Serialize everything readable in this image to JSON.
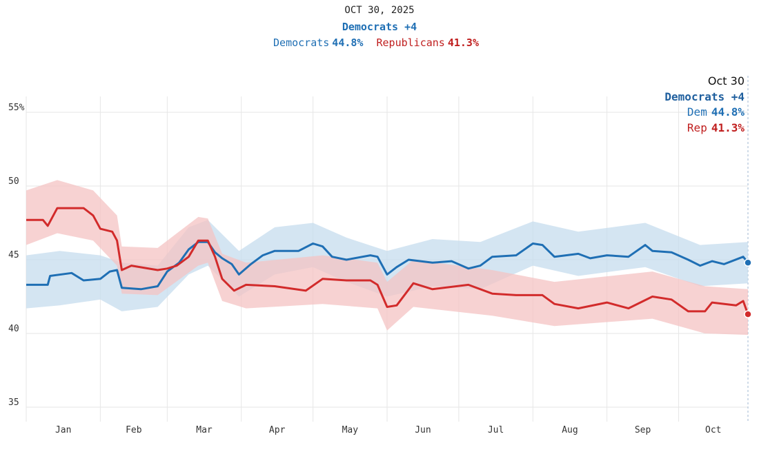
{
  "header": {
    "date": "OCT 30, 2025",
    "lead": "Democrats +4",
    "dem_name": "Democrats",
    "dem_value": "44.8%",
    "rep_name": "Republicans",
    "rep_value": "41.3%"
  },
  "tooltip": {
    "date": "Oct 30",
    "lead": "Democrats +4",
    "dem_name": "Dem",
    "dem_value": "44.8%",
    "rep_name": "Rep",
    "rep_value": "41.3%"
  },
  "colors": {
    "dem": "#1f6fb4",
    "dem_band": "#c5dcee",
    "rep": "#d22b2b",
    "rep_band": "#f4c3c3",
    "grid": "#e6e6e6"
  },
  "chart_data": {
    "type": "line",
    "title": "",
    "xlabel": "",
    "ylabel": "",
    "ylim": [
      34,
      56
    ],
    "yticks": [
      35,
      40,
      45,
      50,
      55
    ],
    "ytick_labels": [
      "35",
      "40",
      "45",
      "50",
      "55%"
    ],
    "months": [
      "Jan",
      "Feb",
      "Mar",
      "Apr",
      "May",
      "Jun",
      "Jul",
      "Aug",
      "Sep",
      "Oct"
    ],
    "x_range": [
      "2025-01-01",
      "2025-10-30"
    ],
    "grid": true,
    "series": [
      {
        "name": "Democrats",
        "points": [
          [
            "2025-01-01",
            43.3
          ],
          [
            "2025-01-10",
            43.3
          ],
          [
            "2025-01-11",
            43.9
          ],
          [
            "2025-01-20",
            44.1
          ],
          [
            "2025-01-25",
            43.6
          ],
          [
            "2025-02-01",
            43.7
          ],
          [
            "2025-02-05",
            44.2
          ],
          [
            "2025-02-08",
            44.3
          ],
          [
            "2025-02-10",
            43.1
          ],
          [
            "2025-02-18",
            43.0
          ],
          [
            "2025-02-25",
            43.2
          ],
          [
            "2025-03-01",
            44.2
          ],
          [
            "2025-03-06",
            44.8
          ],
          [
            "2025-03-10",
            45.7
          ],
          [
            "2025-03-14",
            46.2
          ],
          [
            "2025-03-18",
            46.2
          ],
          [
            "2025-03-21",
            45.5
          ],
          [
            "2025-03-24",
            45.1
          ],
          [
            "2025-03-28",
            44.7
          ],
          [
            "2025-03-31",
            44.0
          ],
          [
            "2025-04-05",
            44.7
          ],
          [
            "2025-04-10",
            45.3
          ],
          [
            "2025-04-15",
            45.6
          ],
          [
            "2025-04-25",
            45.6
          ],
          [
            "2025-05-01",
            46.1
          ],
          [
            "2025-05-05",
            45.9
          ],
          [
            "2025-05-09",
            45.2
          ],
          [
            "2025-05-15",
            45.0
          ],
          [
            "2025-05-25",
            45.3
          ],
          [
            "2025-05-28",
            45.2
          ],
          [
            "2025-06-01",
            44.0
          ],
          [
            "2025-06-05",
            44.5
          ],
          [
            "2025-06-10",
            45.0
          ],
          [
            "2025-06-20",
            44.8
          ],
          [
            "2025-06-28",
            44.9
          ],
          [
            "2025-07-05",
            44.4
          ],
          [
            "2025-07-10",
            44.6
          ],
          [
            "2025-07-15",
            45.2
          ],
          [
            "2025-07-25",
            45.3
          ],
          [
            "2025-08-01",
            46.1
          ],
          [
            "2025-08-05",
            46.0
          ],
          [
            "2025-08-10",
            45.2
          ],
          [
            "2025-08-20",
            45.4
          ],
          [
            "2025-08-25",
            45.1
          ],
          [
            "2025-09-01",
            45.3
          ],
          [
            "2025-09-10",
            45.2
          ],
          [
            "2025-09-17",
            46.0
          ],
          [
            "2025-09-20",
            45.6
          ],
          [
            "2025-09-28",
            45.5
          ],
          [
            "2025-10-05",
            45.0
          ],
          [
            "2025-10-10",
            44.6
          ],
          [
            "2025-10-15",
            44.9
          ],
          [
            "2025-10-20",
            44.7
          ],
          [
            "2025-10-28",
            45.2
          ],
          [
            "2025-10-30",
            44.8
          ]
        ],
        "band": [
          [
            "2025-01-01",
            41.7,
            45.3
          ],
          [
            "2025-01-15",
            41.9,
            45.6
          ],
          [
            "2025-02-01",
            42.3,
            45.3
          ],
          [
            "2025-02-10",
            41.5,
            44.8
          ],
          [
            "2025-02-25",
            41.8,
            44.6
          ],
          [
            "2025-03-10",
            44.0,
            47.2
          ],
          [
            "2025-03-18",
            44.6,
            47.7
          ],
          [
            "2025-03-31",
            42.5,
            45.6
          ],
          [
            "2025-04-15",
            44.0,
            47.2
          ],
          [
            "2025-05-01",
            44.5,
            47.5
          ],
          [
            "2025-05-15",
            43.5,
            46.5
          ],
          [
            "2025-06-01",
            42.5,
            45.6
          ],
          [
            "2025-06-20",
            43.2,
            46.4
          ],
          [
            "2025-07-10",
            43.0,
            46.2
          ],
          [
            "2025-08-01",
            44.6,
            47.6
          ],
          [
            "2025-08-20",
            43.9,
            46.9
          ],
          [
            "2025-09-17",
            44.5,
            47.5
          ],
          [
            "2025-10-10",
            43.2,
            46.0
          ],
          [
            "2025-10-30",
            43.4,
            46.2
          ]
        ]
      },
      {
        "name": "Republicans",
        "points": [
          [
            "2025-01-01",
            47.7
          ],
          [
            "2025-01-08",
            47.7
          ],
          [
            "2025-01-10",
            47.3
          ],
          [
            "2025-01-14",
            48.5
          ],
          [
            "2025-01-25",
            48.5
          ],
          [
            "2025-01-29",
            48.0
          ],
          [
            "2025-02-01",
            47.1
          ],
          [
            "2025-02-06",
            46.9
          ],
          [
            "2025-02-08",
            46.3
          ],
          [
            "2025-02-10",
            44.3
          ],
          [
            "2025-02-14",
            44.6
          ],
          [
            "2025-02-25",
            44.3
          ],
          [
            "2025-03-01",
            44.4
          ],
          [
            "2025-03-05",
            44.6
          ],
          [
            "2025-03-10",
            45.2
          ],
          [
            "2025-03-14",
            46.3
          ],
          [
            "2025-03-18",
            46.3
          ],
          [
            "2025-03-21",
            45.2
          ],
          [
            "2025-03-24",
            43.7
          ],
          [
            "2025-03-29",
            42.9
          ],
          [
            "2025-04-03",
            43.3
          ],
          [
            "2025-04-15",
            43.2
          ],
          [
            "2025-04-28",
            42.9
          ],
          [
            "2025-05-05",
            43.7
          ],
          [
            "2025-05-15",
            43.6
          ],
          [
            "2025-05-25",
            43.6
          ],
          [
            "2025-05-28",
            43.3
          ],
          [
            "2025-06-01",
            41.8
          ],
          [
            "2025-06-05",
            41.9
          ],
          [
            "2025-06-12",
            43.4
          ],
          [
            "2025-06-20",
            43.0
          ],
          [
            "2025-07-05",
            43.3
          ],
          [
            "2025-07-15",
            42.7
          ],
          [
            "2025-07-25",
            42.6
          ],
          [
            "2025-08-05",
            42.6
          ],
          [
            "2025-08-10",
            42.0
          ],
          [
            "2025-08-20",
            41.7
          ],
          [
            "2025-09-01",
            42.1
          ],
          [
            "2025-09-10",
            41.7
          ],
          [
            "2025-09-20",
            42.5
          ],
          [
            "2025-09-28",
            42.3
          ],
          [
            "2025-10-05",
            41.5
          ],
          [
            "2025-10-12",
            41.5
          ],
          [
            "2025-10-15",
            42.1
          ],
          [
            "2025-10-25",
            41.9
          ],
          [
            "2025-10-28",
            42.2
          ],
          [
            "2025-10-30",
            41.3
          ]
        ],
        "band": [
          [
            "2025-01-01",
            46.0,
            49.7
          ],
          [
            "2025-01-14",
            46.8,
            50.4
          ],
          [
            "2025-01-29",
            46.3,
            49.7
          ],
          [
            "2025-02-08",
            44.6,
            48.0
          ],
          [
            "2025-02-10",
            42.7,
            45.9
          ],
          [
            "2025-02-25",
            42.6,
            45.8
          ],
          [
            "2025-03-14",
            44.6,
            47.9
          ],
          [
            "2025-03-18",
            44.8,
            47.8
          ],
          [
            "2025-03-24",
            42.2,
            45.4
          ],
          [
            "2025-04-03",
            41.7,
            44.8
          ],
          [
            "2025-05-05",
            42.0,
            45.3
          ],
          [
            "2025-05-28",
            41.7,
            44.8
          ],
          [
            "2025-06-01",
            40.2,
            43.5
          ],
          [
            "2025-06-12",
            41.8,
            45.0
          ],
          [
            "2025-07-15",
            41.2,
            44.3
          ],
          [
            "2025-08-10",
            40.5,
            43.5
          ],
          [
            "2025-09-20",
            41.0,
            44.2
          ],
          [
            "2025-10-12",
            40.0,
            43.2
          ],
          [
            "2025-10-30",
            39.9,
            43.0
          ]
        ]
      }
    ]
  }
}
